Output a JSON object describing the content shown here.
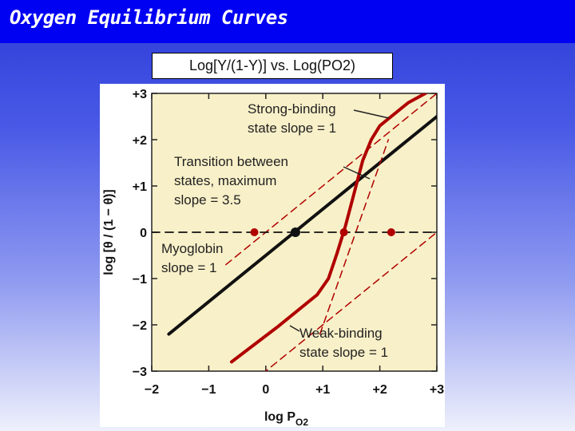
{
  "slide": {
    "title": "Oxygen Equilibrium Curves",
    "subtitle": "Log[Y/(1-Y)] vs. Log(PO2)"
  },
  "colors": {
    "title_bar": "#0000f2",
    "plot_background": "#f8f0c8",
    "hemoglobin_curve": "#b00000",
    "myoglobin_line": "#111111"
  },
  "chart_data": {
    "type": "line",
    "xlabel": "log P",
    "xlabel_sub": "O2",
    "ylabel": "log [θ / (1 − θ)]",
    "xlim": [
      -2,
      3
    ],
    "ylim": [
      -3,
      3
    ],
    "xticks": [
      -2,
      -1,
      0,
      1,
      2,
      3
    ],
    "xtick_labels": [
      "−2",
      "−1",
      "0",
      "+1",
      "+2",
      "+3"
    ],
    "yticks": [
      3,
      2,
      1,
      0,
      -1,
      -2,
      -3
    ],
    "ytick_labels": [
      "+3",
      "+2",
      "+1",
      "0",
      "−1",
      "−2",
      "−3"
    ],
    "grid": false,
    "series": [
      {
        "style": "solid-black",
        "x": [
          -1.7,
          3.0
        ],
        "y": [
          -2.2,
          2.5
        ]
      },
      {
        "style": "solid-red",
        "x": [
          -0.6,
          0.2,
          0.9,
          1.1,
          1.25,
          1.4,
          1.55,
          1.7,
          1.85,
          2.0,
          2.5,
          2.8
        ],
        "y": [
          -2.8,
          -2.05,
          -1.35,
          -1.0,
          -0.45,
          0.15,
          0.85,
          1.55,
          2.0,
          2.3,
          2.8,
          3.0
        ]
      },
      {
        "style": "dashed-red",
        "x": [
          -0.7,
          3.0
        ],
        "y": [
          -0.7,
          3.0
        ]
      },
      {
        "style": "dashed-red",
        "x": [
          -1.7,
          3.0
        ],
        "y": [
          -4.7,
          0.0
        ]
      },
      {
        "style": "dashed-red",
        "x": [
          0.95,
          2.15
        ],
        "y": [
          -2.2,
          2.0
        ]
      },
      {
        "style": "dashed-black",
        "x": [
          -2,
          3
        ],
        "y": [
          0,
          0
        ]
      }
    ],
    "points": [
      {
        "x": -0.2,
        "y": 0,
        "color": "red"
      },
      {
        "x": 0.52,
        "y": 0,
        "color": "black"
      },
      {
        "x": 1.37,
        "y": 0,
        "color": "red"
      },
      {
        "x": 2.2,
        "y": 0,
        "color": "red"
      }
    ],
    "annotations": [
      {
        "lines": [
          "Strong-binding",
          "state slope = 1"
        ]
      },
      {
        "lines": [
          "Transition between",
          "states, maximum",
          "slope = 3.5"
        ]
      },
      {
        "lines": [
          "Myoglobin",
          "slope = 1"
        ]
      },
      {
        "lines": [
          "Weak-binding",
          "state slope = 1"
        ]
      }
    ]
  }
}
